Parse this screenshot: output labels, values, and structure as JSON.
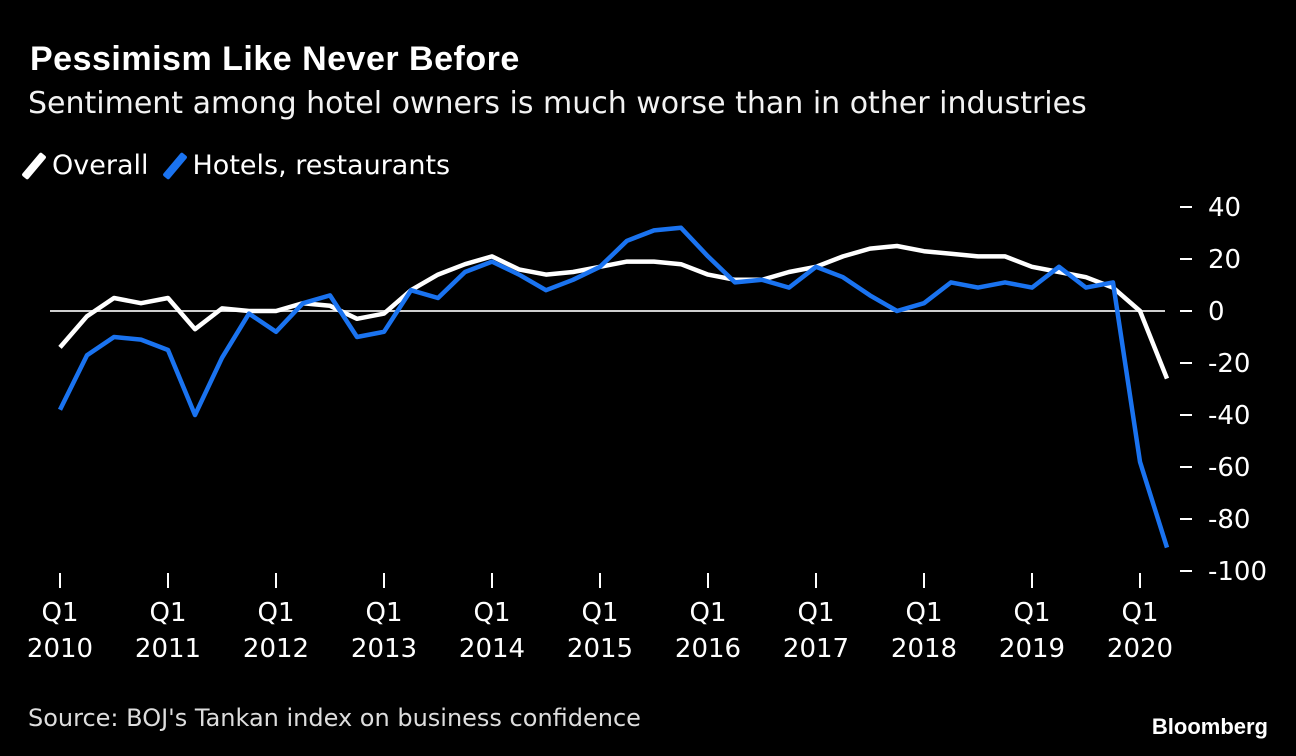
{
  "header": {
    "title": "Pessimism Like Never Before",
    "subtitle": "Sentiment among hotel owners is much worse than in other industries"
  },
  "legend": [
    {
      "label": "Overall",
      "color": "#ffffff"
    },
    {
      "label": "Hotels, restaurants",
      "color": "#1a73f0"
    }
  ],
  "footer": {
    "source": "Source: BOJ's Tankan index on business confidence",
    "brand": "Bloomberg"
  },
  "chart_data": {
    "type": "line",
    "ylim": [
      -100,
      40
    ],
    "y_ticks": [
      40,
      20,
      0,
      -20,
      -40,
      -60,
      -80,
      -100
    ],
    "x_ticks": [
      {
        "q": "Q1",
        "year": "2010"
      },
      {
        "q": "Q1",
        "year": "2011"
      },
      {
        "q": "Q1",
        "year": "2012"
      },
      {
        "q": "Q1",
        "year": "2013"
      },
      {
        "q": "Q1",
        "year": "2014"
      },
      {
        "q": "Q1",
        "year": "2015"
      },
      {
        "q": "Q1",
        "year": "2016"
      },
      {
        "q": "Q1",
        "year": "2017"
      },
      {
        "q": "Q1",
        "year": "2018"
      },
      {
        "q": "Q1",
        "year": "2019"
      },
      {
        "q": "Q1",
        "year": "2020"
      }
    ],
    "x_start": "2010 Q1",
    "x_end": "2020 Q2",
    "zero_line": true,
    "series": [
      {
        "name": "Overall",
        "color": "#ffffff",
        "values": [
          -14,
          -2,
          5,
          3,
          5,
          -7,
          1,
          0,
          0,
          3,
          2,
          -3,
          -1,
          8,
          14,
          18,
          21,
          16,
          14,
          15,
          17,
          19,
          19,
          18,
          14,
          12,
          12,
          15,
          17,
          21,
          24,
          25,
          23,
          22,
          21,
          21,
          17,
          15,
          13,
          9,
          0,
          -26
        ]
      },
      {
        "name": "Hotels, restaurants",
        "color": "#1a73f0",
        "values": [
          -38,
          -17,
          -10,
          -11,
          -15,
          -40,
          -18,
          -1,
          -8,
          3,
          6,
          -10,
          -8,
          8,
          5,
          15,
          19,
          14,
          8,
          12,
          17,
          27,
          31,
          32,
          21,
          11,
          12,
          9,
          17,
          13,
          6,
          0,
          3,
          11,
          9,
          11,
          9,
          17,
          9,
          11,
          -58,
          -91
        ]
      }
    ]
  }
}
